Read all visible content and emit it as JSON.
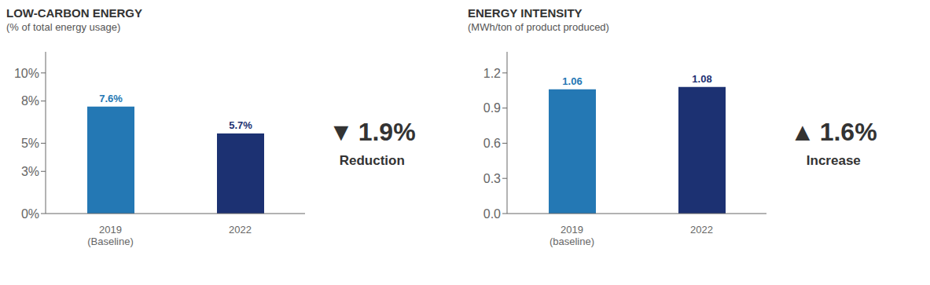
{
  "chart_data": [
    {
      "type": "bar",
      "title": "LOW-CARBON ENERGY",
      "subtitle": "(% of total energy usage)",
      "categories": [
        "2019\n(Baseline)",
        "2022"
      ],
      "values": [
        7.6,
        5.7
      ],
      "value_labels": [
        "7.6%",
        "5.7%"
      ],
      "data_labels": true,
      "colors": [
        "#2478B4",
        "#1C3172"
      ],
      "ylim": [
        0,
        11.5
      ],
      "yticks": [
        {
          "value": 0,
          "label": "0%"
        },
        {
          "value": 3,
          "label": "3%"
        },
        {
          "value": 5,
          "label": "5%"
        },
        {
          "value": 8,
          "label": "8%"
        },
        {
          "value": 10,
          "label": "10%"
        }
      ],
      "annotations": [
        "▼",
        "1.9%",
        "Reduction"
      ]
    },
    {
      "type": "bar",
      "title": "ENERGY INTENSITY",
      "subtitle": "(MWh/ton of product produced)",
      "categories": [
        "2019\n(baseline)",
        "2022"
      ],
      "values": [
        1.06,
        1.08
      ],
      "data_labels": true,
      "colors": [
        "#2478B4",
        "#1C3172"
      ],
      "ylim": [
        0,
        1.38
      ],
      "yticks": [
        {
          "value": 0,
          "label": "0.0"
        },
        0.3,
        0.6,
        0.9,
        1.2
      ],
      "annotations": [
        "▲",
        "1.6%",
        "Increase"
      ]
    }
  ]
}
